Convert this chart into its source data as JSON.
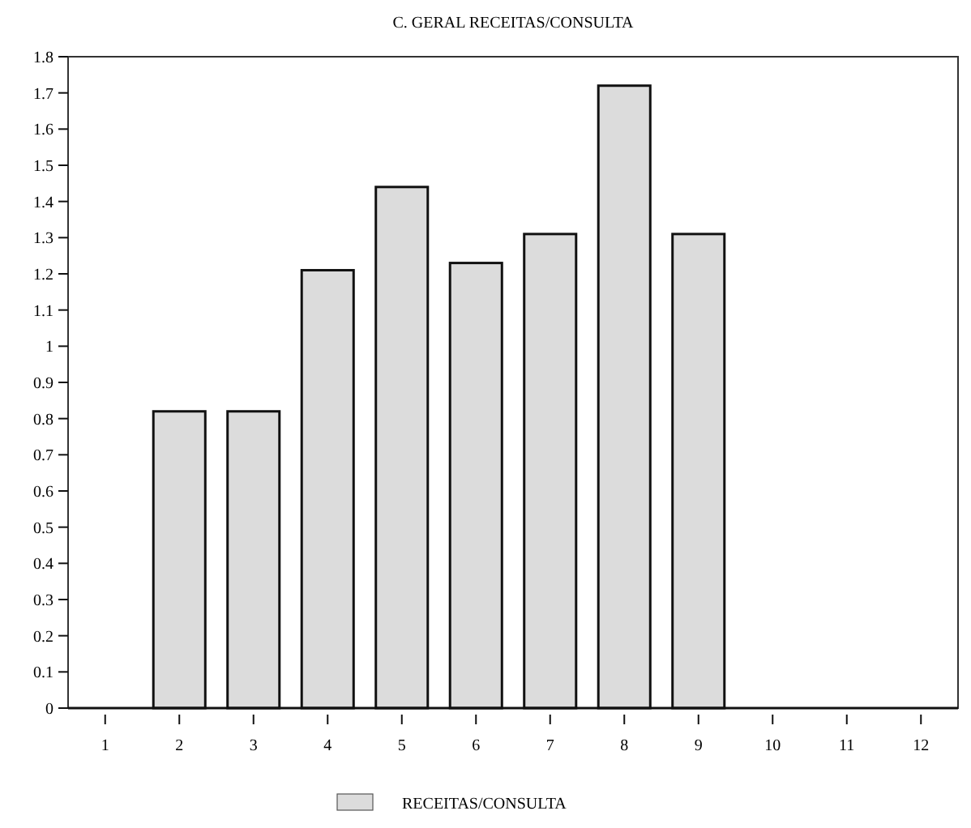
{
  "chart_data": {
    "type": "bar",
    "title": "C. GERAL RECEITAS/CONSULTA",
    "categories": [
      "1",
      "2",
      "3",
      "4",
      "5",
      "6",
      "7",
      "8",
      "9",
      "10",
      "11",
      "12"
    ],
    "series": [
      {
        "name": "RECEITAS/CONSULTA",
        "color": "#dcdcdc",
        "values": [
          0,
          0.82,
          0.82,
          1.21,
          1.44,
          1.23,
          1.31,
          1.72,
          1.31,
          0,
          0,
          0
        ]
      }
    ],
    "ylim": [
      0,
      1.8
    ],
    "yticks": [
      0,
      0.1,
      0.2,
      0.3,
      0.4,
      0.5,
      0.6,
      0.7,
      0.8,
      0.9,
      1,
      1.1,
      1.2,
      1.3,
      1.4,
      1.5,
      1.6,
      1.7,
      1.8
    ],
    "grid": false,
    "legend": "bottom"
  }
}
